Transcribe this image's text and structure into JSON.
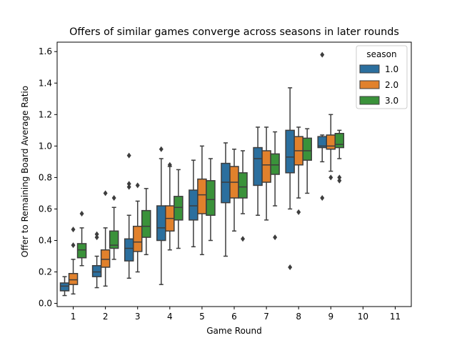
{
  "chart_data": {
    "type": "box",
    "title": "Offers of similar games converge across seasons in later rounds",
    "xlabel": "Game Round",
    "ylabel": "Offer to Remaining Board Average Ratio",
    "categories": [
      "1",
      "2",
      "3",
      "4",
      "5",
      "6",
      "7",
      "8",
      "9",
      "10",
      "11"
    ],
    "ylim": [
      -0.02,
      1.66
    ],
    "yticks": [
      "0.0",
      "0.2",
      "0.4",
      "0.6",
      "0.8",
      "1.0",
      "1.2",
      "1.4",
      "1.6"
    ],
    "grid": false,
    "legend": {
      "title": "season",
      "placement": "top-right"
    },
    "series": [
      {
        "name": "1.0",
        "color": "#2b6f9e",
        "boxes": [
          {
            "category": "1",
            "whislo": 0.05,
            "q1": 0.08,
            "med": 0.11,
            "q3": 0.13,
            "whishi": 0.17,
            "fliers": []
          },
          {
            "category": "2",
            "whislo": 0.1,
            "q1": 0.17,
            "med": 0.2,
            "q3": 0.24,
            "whishi": 0.3,
            "fliers": [
              0.42,
              0.44
            ]
          },
          {
            "category": "3",
            "whislo": 0.16,
            "q1": 0.27,
            "med": 0.35,
            "q3": 0.41,
            "whishi": 0.56,
            "fliers": [
              0.74,
              0.76,
              0.94
            ]
          },
          {
            "category": "4",
            "whislo": 0.12,
            "q1": 0.4,
            "med": 0.48,
            "q3": 0.62,
            "whishi": 0.92,
            "fliers": [
              0.98
            ]
          },
          {
            "category": "5",
            "whislo": 0.36,
            "q1": 0.53,
            "med": 0.62,
            "q3": 0.72,
            "whishi": 0.91,
            "fliers": []
          },
          {
            "category": "6",
            "whislo": 0.3,
            "q1": 0.64,
            "med": 0.77,
            "q3": 0.89,
            "whishi": 1.02,
            "fliers": []
          },
          {
            "category": "7",
            "whislo": 0.56,
            "q1": 0.75,
            "med": 0.92,
            "q3": 0.99,
            "whishi": 1.12,
            "fliers": []
          },
          {
            "category": "8",
            "whislo": 0.6,
            "q1": 0.83,
            "med": 0.93,
            "q3": 1.1,
            "whishi": 1.37,
            "fliers": [
              0.23
            ]
          },
          {
            "category": "9",
            "whislo": 0.9,
            "q1": 0.99,
            "med": 1.0,
            "q3": 1.06,
            "whishi": 1.07,
            "fliers": [
              0.67,
              1.58
            ]
          }
        ]
      },
      {
        "name": "2.0",
        "color": "#e1812c",
        "boxes": [
          {
            "category": "1",
            "whislo": 0.06,
            "q1": 0.12,
            "med": 0.15,
            "q3": 0.19,
            "whishi": 0.28,
            "fliers": [
              0.37,
              0.47
            ]
          },
          {
            "category": "2",
            "whislo": 0.11,
            "q1": 0.23,
            "med": 0.28,
            "q3": 0.34,
            "whishi": 0.48,
            "fliers": [
              0.7
            ]
          },
          {
            "category": "3",
            "whislo": 0.2,
            "q1": 0.33,
            "med": 0.39,
            "q3": 0.49,
            "whishi": 0.65,
            "fliers": [
              0.75
            ]
          },
          {
            "category": "4",
            "whislo": 0.34,
            "q1": 0.46,
            "med": 0.54,
            "q3": 0.62,
            "whishi": 0.87,
            "fliers": [
              0.88
            ]
          },
          {
            "category": "5",
            "whislo": 0.31,
            "q1": 0.57,
            "med": 0.69,
            "q3": 0.79,
            "whishi": 1.0,
            "fliers": []
          },
          {
            "category": "6",
            "whislo": 0.46,
            "q1": 0.67,
            "med": 0.77,
            "q3": 0.87,
            "whishi": 0.98,
            "fliers": []
          },
          {
            "category": "7",
            "whislo": 0.53,
            "q1": 0.77,
            "med": 0.88,
            "q3": 0.97,
            "whishi": 1.12,
            "fliers": []
          },
          {
            "category": "8",
            "whislo": 0.67,
            "q1": 0.88,
            "med": 0.97,
            "q3": 1.06,
            "whishi": 1.12,
            "fliers": [
              0.58
            ]
          },
          {
            "category": "9",
            "whislo": 0.84,
            "q1": 0.98,
            "med": 1.0,
            "q3": 1.07,
            "whishi": 1.2,
            "fliers": [
              0.8
            ]
          }
        ]
      },
      {
        "name": "3.0",
        "color": "#3a923a",
        "boxes": [
          {
            "category": "1",
            "whislo": 0.24,
            "q1": 0.29,
            "med": 0.34,
            "q3": 0.38,
            "whishi": 0.48,
            "fliers": [
              0.57
            ]
          },
          {
            "category": "2",
            "whislo": 0.28,
            "q1": 0.35,
            "med": 0.37,
            "q3": 0.46,
            "whishi": 0.61,
            "fliers": [
              0.67
            ]
          },
          {
            "category": "3",
            "whislo": 0.31,
            "q1": 0.42,
            "med": 0.49,
            "q3": 0.59,
            "whishi": 0.73,
            "fliers": []
          },
          {
            "category": "4",
            "whislo": 0.35,
            "q1": 0.53,
            "med": 0.61,
            "q3": 0.68,
            "whishi": 0.85,
            "fliers": []
          },
          {
            "category": "5",
            "whislo": 0.4,
            "q1": 0.56,
            "med": 0.66,
            "q3": 0.78,
            "whishi": 0.92,
            "fliers": []
          },
          {
            "category": "6",
            "whislo": 0.57,
            "q1": 0.67,
            "med": 0.74,
            "q3": 0.83,
            "whishi": 0.97,
            "fliers": [
              0.41
            ]
          },
          {
            "category": "7",
            "whislo": 0.62,
            "q1": 0.82,
            "med": 0.88,
            "q3": 0.95,
            "whishi": 1.09,
            "fliers": [
              0.42
            ]
          },
          {
            "category": "8",
            "whislo": 0.7,
            "q1": 0.91,
            "med": 0.97,
            "q3": 1.05,
            "whishi": 1.11,
            "fliers": []
          },
          {
            "category": "9",
            "whislo": 0.92,
            "q1": 0.99,
            "med": 1.01,
            "q3": 1.08,
            "whishi": 1.1,
            "fliers": [
              0.78,
              0.8
            ]
          }
        ]
      }
    ]
  }
}
